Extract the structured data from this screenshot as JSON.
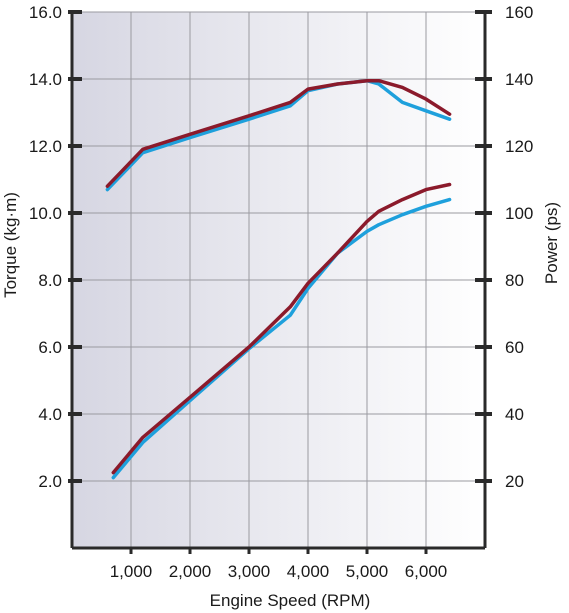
{
  "chart_data": {
    "type": "line",
    "xlabel": "Engine Speed (RPM)",
    "ylabel": "Torque (kg·m)",
    "y2label": "Power (ps)",
    "xlim": [
      0,
      7000
    ],
    "ylim": [
      0,
      16
    ],
    "y2lim": [
      0,
      160
    ],
    "x_ticks": [
      1000,
      2000,
      3000,
      4000,
      5000,
      6000
    ],
    "x_tick_labels": [
      "1,000",
      "2,000",
      "3,000",
      "4,000",
      "5,000",
      "6,000"
    ],
    "y_ticks": [
      2,
      4,
      6,
      8,
      10,
      12,
      14,
      16
    ],
    "y_tick_labels": [
      "2.0",
      "4.0",
      "6.0",
      "8.0",
      "10.0",
      "12.0",
      "14.0",
      "16.0"
    ],
    "y2_ticks": [
      20,
      40,
      60,
      80,
      100,
      120,
      140,
      160
    ],
    "y2_tick_labels": [
      "20",
      "40",
      "60",
      "80",
      "100",
      "120",
      "140",
      "160"
    ],
    "grid": true,
    "colors": {
      "red": "#8b1a2b",
      "blue": "#1ea0dc",
      "background_left": "#d8d8e4",
      "background_right": "#ffffff"
    },
    "series": [
      {
        "axis": "y",
        "color": "red",
        "x": [
          600,
          1200,
          2000,
          3000,
          3700,
          4000,
          4500,
          5000,
          5200,
          5600,
          6000,
          6400
        ],
        "values": [
          10.8,
          11.9,
          12.35,
          12.9,
          13.3,
          13.7,
          13.85,
          13.95,
          13.95,
          13.75,
          13.4,
          12.95
        ]
      },
      {
        "axis": "y",
        "color": "blue",
        "x": [
          600,
          1200,
          2000,
          3000,
          3700,
          4000,
          4500,
          5000,
          5200,
          5600,
          6000,
          6400
        ],
        "values": [
          10.7,
          11.8,
          12.25,
          12.8,
          13.2,
          13.65,
          13.85,
          13.95,
          13.85,
          13.3,
          13.05,
          12.8
        ]
      },
      {
        "axis": "y2",
        "color": "red",
        "x": [
          700,
          1200,
          2000,
          3000,
          3700,
          4000,
          4500,
          5000,
          5200,
          5600,
          6000,
          6400
        ],
        "values": [
          22.5,
          33,
          45,
          60,
          72,
          79,
          88,
          97.5,
          100.5,
          104,
          107,
          108.5
        ]
      },
      {
        "axis": "y2",
        "color": "blue",
        "x": [
          700,
          1200,
          2000,
          3000,
          3700,
          4000,
          4500,
          5000,
          5200,
          5600,
          6000,
          6400
        ],
        "values": [
          21,
          31.5,
          44,
          59.5,
          69.5,
          77.5,
          88,
          94.5,
          96.5,
          99.5,
          102,
          104
        ]
      }
    ]
  }
}
